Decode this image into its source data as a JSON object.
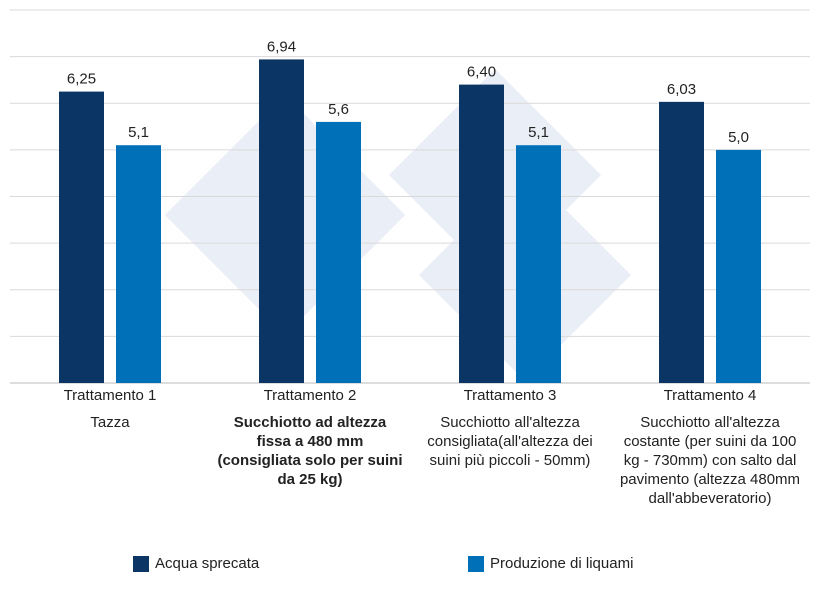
{
  "chart_data": {
    "type": "bar",
    "categories": [
      "Trattamento 1",
      "Trattamento 2",
      "Trattamento 3",
      "Trattamento 4"
    ],
    "descriptions": [
      "Tazza",
      "Succhiotto ad altezza fissa a 480 mm (consigliata solo per suini da 25 kg)",
      "Succhiotto all'altezza consigliata(all'altezza dei suini più piccoli - 50mm)",
      "Succhiotto all'altezza costante (per suini da 100 kg - 730mm) con salto dal pavimento (altezza 480mm dall'abbeveratorio)"
    ],
    "descriptions_bold": [
      false,
      true,
      false,
      false
    ],
    "series": [
      {
        "name": "Acqua sprecata",
        "color": "#0b3564",
        "values": [
          6.25,
          6.94,
          6.4,
          6.03
        ],
        "value_labels": [
          "6,25",
          "6,94",
          "6,40",
          "6,03"
        ]
      },
      {
        "name": "Produzione di liquami",
        "color": "#0070b8",
        "values": [
          5.1,
          5.6,
          5.1,
          5.0
        ],
        "value_labels": [
          "5,1",
          "5,6",
          "5,1",
          "5,0"
        ]
      }
    ],
    "ylim": [
      0,
      8
    ],
    "yticks": [
      0,
      1,
      2,
      3,
      4,
      5,
      6,
      7,
      8
    ],
    "grid": true
  }
}
